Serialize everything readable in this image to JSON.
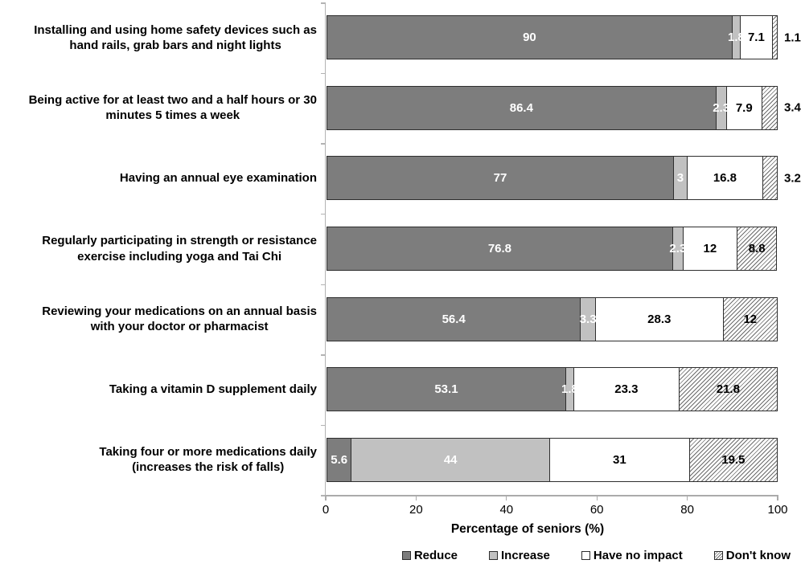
{
  "chart_data": {
    "type": "bar",
    "orientation": "horizontal",
    "stacked": true,
    "title": "",
    "xlabel": "Percentage of seniors (%)",
    "ylabel": "",
    "xlim": [
      0,
      100
    ],
    "xticks": [
      0,
      20,
      40,
      60,
      80,
      100
    ],
    "grid": false,
    "legend_position": "bottom",
    "categories": [
      "Installing and using home safety devices such as\nhand rails, grab bars and night lights",
      "Being active for at least two and a half hours or 30\nminutes 5 times a week",
      "Having an annual eye examination",
      "Regularly participating in strength or resistance\nexercise including yoga and Tai Chi",
      "Reviewing your medications on an annual basis\nwith your doctor or pharmacist",
      "Taking a vitamin D supplement daily",
      "Taking four or more medications daily\n(increases the risk of falls)"
    ],
    "series": [
      {
        "name": "Reduce",
        "fill": "#7d7d7d",
        "pattern": "solid",
        "label_color": "#ffffff",
        "values": [
          90,
          86.4,
          77,
          76.8,
          56.4,
          53.1,
          5.6
        ]
      },
      {
        "name": "Increase",
        "fill": "#c1c1c1",
        "pattern": "solid",
        "label_color": "#ffffff",
        "values": [
          1.8,
          2.3,
          3,
          2.3,
          3.3,
          1.8,
          44
        ]
      },
      {
        "name": "Have no impact",
        "fill": "#ffffff",
        "pattern": "solid",
        "label_color": "#000000",
        "values": [
          7.1,
          7.9,
          16.8,
          12,
          28.3,
          23.3,
          31
        ]
      },
      {
        "name": "Don't know",
        "fill": "#ffffff",
        "pattern": "diagonal-hatch",
        "label_color": "#000000",
        "values": [
          1.1,
          3.4,
          3.2,
          8.8,
          12,
          21.8,
          19.5
        ]
      }
    ],
    "colors": {
      "bar_border": "#2e2e2e",
      "axis_line": "#ababab",
      "hatch_line": "#6b6b6b"
    }
  }
}
